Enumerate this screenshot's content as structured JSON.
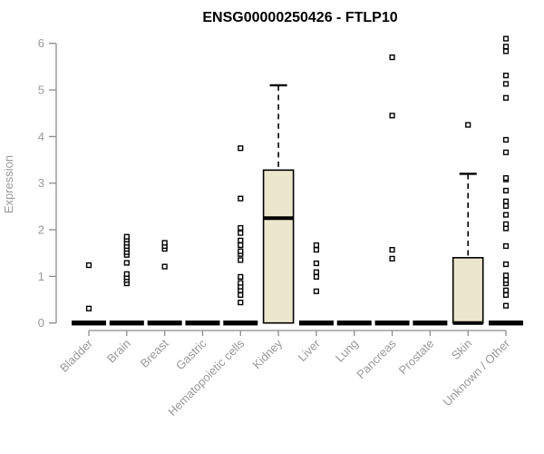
{
  "header": {
    "title": "ENSG00000250426 - FTLP10"
  },
  "chart_data": {
    "type": "boxplot",
    "title": "ENSG00000250426 - FTLP10",
    "xlabel": "",
    "ylabel": "Expression",
    "ylim": [
      0,
      6.2
    ],
    "yticks": [
      0,
      1,
      2,
      3,
      4,
      5,
      6
    ],
    "grid": false,
    "legend": false,
    "categories": [
      "Bladder",
      "Brain",
      "Breast",
      "Gastric",
      "Hematopoietic cells",
      "Kidney",
      "Liver",
      "Lung",
      "Pancreas",
      "Prostate",
      "Skin",
      "Unknown / Other"
    ],
    "boxes": [
      {
        "category": "Bladder",
        "q1": 0,
        "median": 0,
        "q3": 0,
        "whisker_low": 0,
        "whisker_high": 0,
        "outliers": [
          0.31,
          1.24
        ]
      },
      {
        "category": "Brain",
        "q1": 0,
        "median": 0,
        "q3": 0,
        "whisker_low": 0,
        "whisker_high": 0,
        "outliers": [
          0.85,
          0.92,
          0.98,
          1.05,
          1.29,
          1.46,
          1.52,
          1.59,
          1.65,
          1.72,
          1.79,
          1.85
        ]
      },
      {
        "category": "Breast",
        "q1": 0,
        "median": 0,
        "q3": 0,
        "whisker_low": 0,
        "whisker_high": 0,
        "outliers": [
          1.21,
          1.59,
          1.65,
          1.72
        ]
      },
      {
        "category": "Gastric",
        "q1": 0,
        "median": 0,
        "q3": 0,
        "whisker_low": 0,
        "whisker_high": 0,
        "outliers": []
      },
      {
        "category": "Hematopoietic cells",
        "q1": 0,
        "median": 0,
        "q3": 0,
        "whisker_low": 0,
        "whisker_high": 0,
        "outliers": [
          0.44,
          0.6,
          0.7,
          0.78,
          0.86,
          0.99,
          1.35,
          1.48,
          1.54,
          1.67,
          1.77,
          1.93,
          2.04,
          2.67,
          3.75
        ]
      },
      {
        "category": "Kidney",
        "q1": 0,
        "median": 2.25,
        "q3": 3.28,
        "whisker_low": 0,
        "whisker_high": 5.1,
        "outliers": []
      },
      {
        "category": "Liver",
        "q1": 0,
        "median": 0,
        "q3": 0,
        "whisker_low": 0,
        "whisker_high": 0,
        "outliers": [
          0.68,
          0.99,
          1.09,
          1.28,
          1.57,
          1.67
        ]
      },
      {
        "category": "Lung",
        "q1": 0,
        "median": 0,
        "q3": 0,
        "whisker_low": 0,
        "whisker_high": 0,
        "outliers": []
      },
      {
        "category": "Pancreas",
        "q1": 0,
        "median": 0,
        "q3": 0,
        "whisker_low": 0,
        "whisker_high": 0,
        "outliers": [
          1.38,
          1.57,
          4.45,
          5.7
        ]
      },
      {
        "category": "Prostate",
        "q1": 0,
        "median": 0,
        "q3": 0,
        "whisker_low": 0,
        "whisker_high": 0,
        "outliers": []
      },
      {
        "category": "Skin",
        "q1": 0,
        "median": 0,
        "q3": 1.4,
        "whisker_low": 0,
        "whisker_high": 3.2,
        "outliers": [
          4.25
        ]
      },
      {
        "category": "Unknown / Other",
        "q1": 0,
        "median": 0,
        "q3": 0,
        "whisker_low": 0,
        "whisker_high": 0,
        "outliers": [
          0.37,
          0.6,
          0.7,
          0.85,
          0.92,
          1.02,
          1.26,
          1.65,
          2.03,
          2.12,
          2.32,
          2.51,
          2.61,
          2.84,
          3.08,
          3.11,
          3.66,
          3.93,
          4.83,
          5.13,
          5.31,
          5.83,
          5.93,
          6.1
        ]
      }
    ],
    "colors": {
      "box_fill": "#ECE6CD",
      "box_stroke": "#000000",
      "median": "#000000",
      "zero_bar": "#000000",
      "outlier_stroke": "#000000",
      "outlier_fill": "#ffffff",
      "axis_line": "#8c8c8c",
      "tick_label": "#999999",
      "title": "#000000",
      "background": "#ffffff"
    }
  }
}
